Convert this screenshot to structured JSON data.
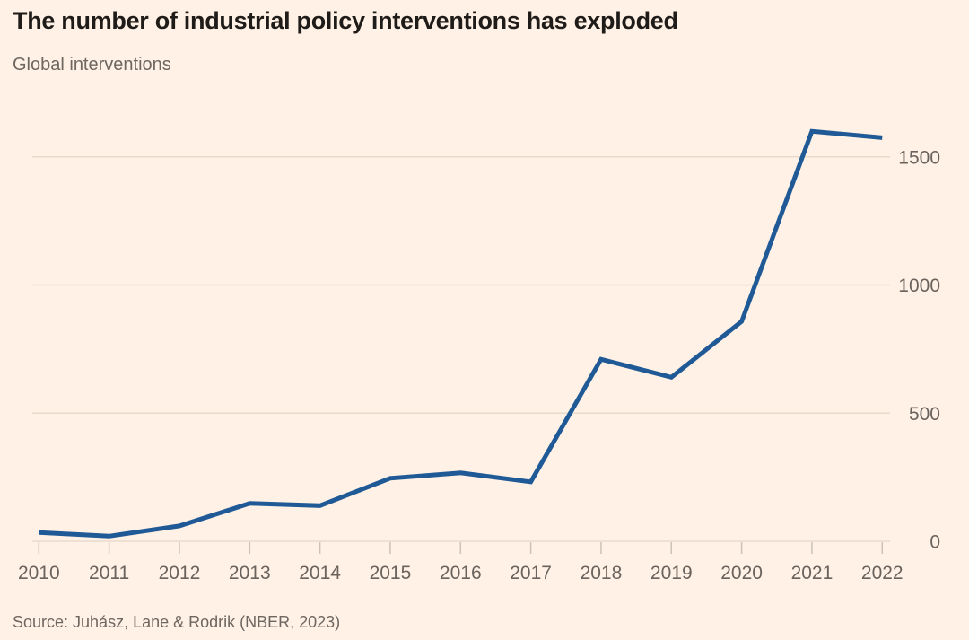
{
  "header": {
    "title": "The number of industrial policy interventions has exploded",
    "subtitle": "Global interventions"
  },
  "footer": {
    "source": "Source: Juhász, Lane & Rodrik (NBER, 2023)"
  },
  "colors": {
    "background": "#fff1e5",
    "line": "#1f5a96",
    "grid": "#e8dacb",
    "tick": "#ccc2b7",
    "axis_text": "#6a635d",
    "title_text": "#1f1b18",
    "muted_text": "#6e6660"
  },
  "chart_data": {
    "type": "line",
    "title": "The number of industrial policy interventions has exploded",
    "subtitle": "Global interventions",
    "source": "Source: Juhász, Lane & Rodrik (NBER, 2023)",
    "x": [
      2010,
      2011,
      2012,
      2013,
      2014,
      2015,
      2016,
      2017,
      2018,
      2019,
      2020,
      2021,
      2022
    ],
    "series": [
      {
        "name": "Global interventions",
        "values": [
          34,
          20,
          60,
          148,
          139,
          246,
          267,
          232,
          710,
          640,
          858,
          1600,
          1575
        ]
      }
    ],
    "xlabel": "",
    "ylabel": "",
    "xlim": [
      2010,
      2022
    ],
    "ylim": [
      0,
      1650
    ],
    "y_ticks": [
      0,
      500,
      1000,
      1500
    ],
    "y_axis_side": "right",
    "grid": "horizontal",
    "legend": "none",
    "line_color": "#1f5a96"
  }
}
